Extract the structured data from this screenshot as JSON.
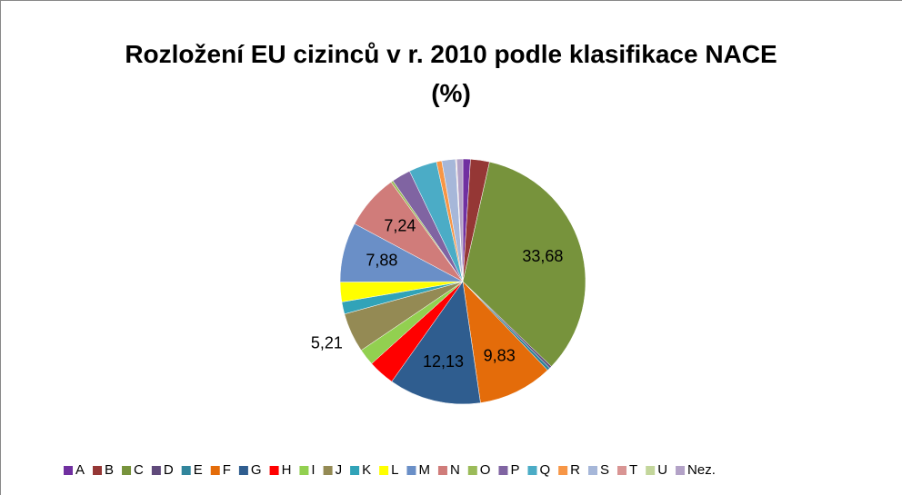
{
  "chart_data": {
    "type": "pie",
    "title": "Rozložení EU cizinců v r. 2010 podle klasifikace NACE (%)",
    "categories": [
      "A",
      "B",
      "C",
      "D",
      "E",
      "F",
      "G",
      "H",
      "I",
      "J",
      "K",
      "L",
      "M",
      "N",
      "O",
      "P",
      "Q",
      "R",
      "S",
      "T",
      "U",
      "Nez."
    ],
    "values": [
      1.0,
      2.5,
      33.68,
      0.3,
      0.4,
      9.83,
      12.13,
      3.5,
      2.2,
      5.21,
      1.6,
      2.6,
      7.88,
      7.24,
      0.3,
      2.5,
      3.7,
      0.7,
      1.8,
      0.1,
      0.05,
      0.8
    ],
    "value_labels": [
      null,
      null,
      "33,68",
      null,
      null,
      "9,83",
      "12,13",
      null,
      null,
      "5,21",
      null,
      null,
      "7,88",
      "7,24",
      null,
      null,
      null,
      null,
      null,
      null,
      null,
      null
    ],
    "colors": [
      "#7030a0",
      "#953735",
      "#77933c",
      "#604a7b",
      "#31859c",
      "#e46c0a",
      "#2f5d8f",
      "#ff0000",
      "#92d050",
      "#948a54",
      "#31a3b8",
      "#ffff00",
      "#6a8fc7",
      "#d07c7a",
      "#9bbb59",
      "#8064a2",
      "#4bacc6",
      "#f79646",
      "#a6b7d9",
      "#d99594",
      "#c3d69b",
      "#b3a2c7"
    ],
    "legend": "bottom"
  }
}
